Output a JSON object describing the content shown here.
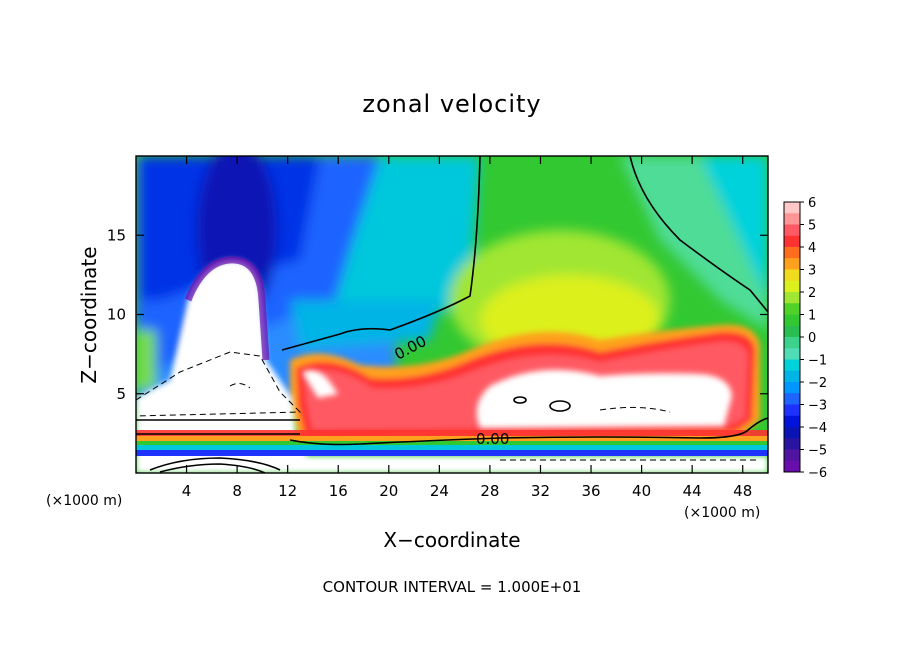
{
  "chart_data": {
    "type": "heatmap",
    "title": "zonal velocity",
    "xlabel": "X−coordinate",
    "ylabel": "Z−coordinate",
    "x_unit": "(×1000 m)",
    "y_unit": "(×1000 m)",
    "xlim": [
      0,
      50
    ],
    "ylim": [
      0,
      20
    ],
    "x_ticks": [
      "4",
      "8",
      "12",
      "16",
      "20",
      "24",
      "28",
      "32",
      "36",
      "40",
      "44",
      "48"
    ],
    "y_ticks": [
      "5",
      "10",
      "15"
    ],
    "colorbar": {
      "range": [
        -6,
        6
      ],
      "tick_labels": [
        "6",
        "5",
        "4",
        "3",
        "2",
        "1",
        "0",
        "−1",
        "−2",
        "−3",
        "−4",
        "−5",
        "−6"
      ]
    },
    "contour_labels": [
      "0.00",
      "0.00"
    ],
    "footer": "CONTOUR INTERVAL = 1.000E+01"
  }
}
